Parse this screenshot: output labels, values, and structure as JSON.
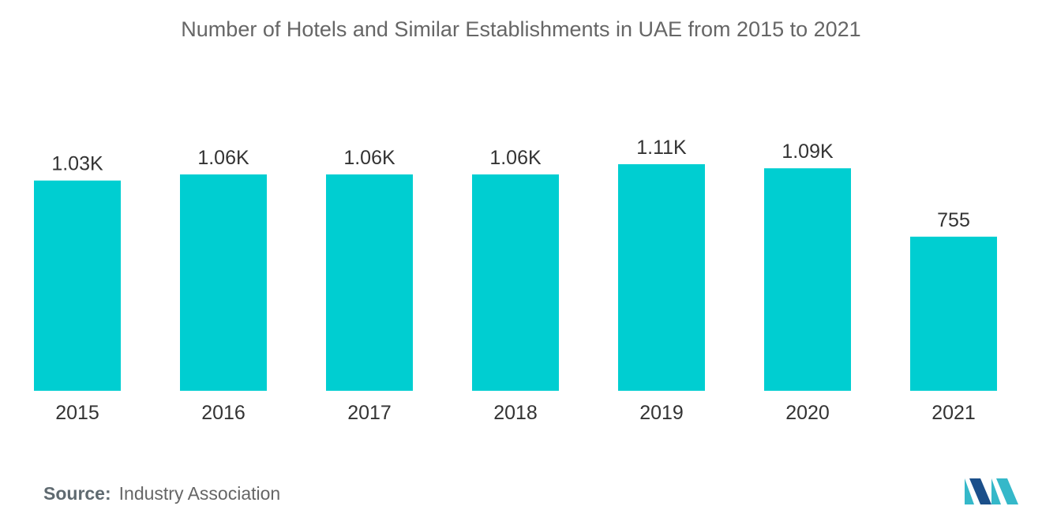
{
  "chart_data": {
    "type": "bar",
    "title": "Number of Hotels and Similar Establishments in UAE from 2015 to 2021",
    "categories": [
      "2015",
      "2016",
      "2017",
      "2018",
      "2019",
      "2020",
      "2021"
    ],
    "values": [
      1030,
      1060,
      1060,
      1060,
      1110,
      1090,
      755
    ],
    "data_labels": [
      "1.03K",
      "1.06K",
      "1.06K",
      "1.06K",
      "1.11K",
      "1.09K",
      "755"
    ],
    "xlabel": "",
    "ylabel": "",
    "ylim": [
      0,
      1110
    ],
    "grid": false,
    "bar_color": "#00CED1"
  },
  "footer": {
    "source_label": "Source:",
    "source_value": "Industry Association"
  },
  "colors": {
    "logo_dark": "#1B4F8A",
    "logo_light": "#35B8C9"
  }
}
